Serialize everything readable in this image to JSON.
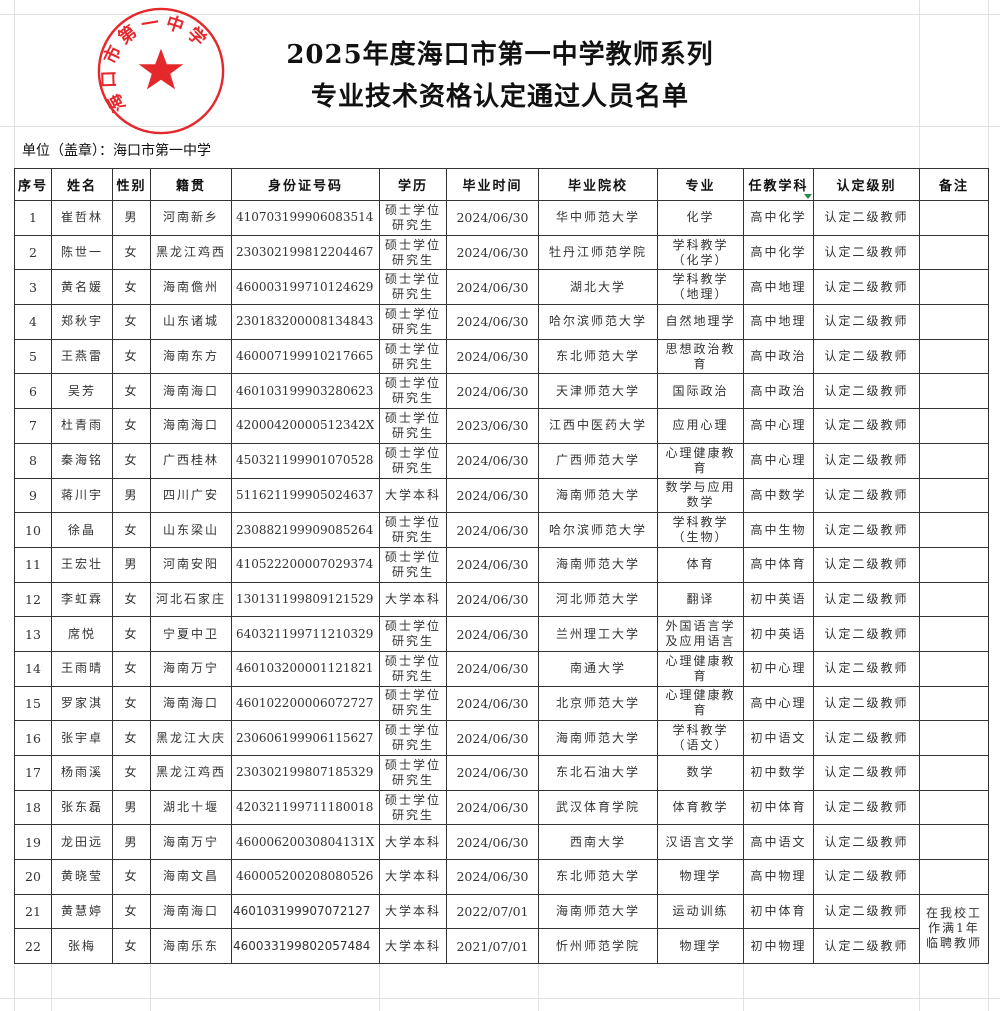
{
  "title_line1": "2025年度海口市第一中学教师系列",
  "title_line2": "专业技术资格认定通过人员名单",
  "unit_label": "单位（盖章）：海口市第一中学",
  "stamp": {
    "text": "海口市第一中学",
    "color": "#e3161b",
    "icon": "star-icon"
  },
  "columns": [
    "序号",
    "姓名",
    "性别",
    "籍贯",
    "身份证号码",
    "学历",
    "毕业时间",
    "毕业院校",
    "专业",
    "任教学科",
    "认定级别",
    "备注"
  ],
  "rows": [
    [
      "1",
      "崔哲林",
      "男",
      "河南新乡",
      "410703199906083514",
      "硕士学位\n研究生",
      "2024/06/30",
      "华中师范大学",
      "化学",
      "高中化学",
      "认定二级教师",
      ""
    ],
    [
      "2",
      "陈世一",
      "女",
      "黑龙江鸡西",
      "230302199812204467",
      "硕士学位\n研究生",
      "2024/06/30",
      "牡丹江师范学院",
      "学科教学\n（化学）",
      "高中化学",
      "认定二级教师",
      ""
    ],
    [
      "3",
      "黄名媛",
      "女",
      "海南儋州",
      "460003199710124629",
      "硕士学位\n研究生",
      "2024/06/30",
      "湖北大学",
      "学科教学\n（地理）",
      "高中地理",
      "认定二级教师",
      ""
    ],
    [
      "4",
      "郑秋宇",
      "女",
      "山东诸城",
      "230183200008134843",
      "硕士学位\n研究生",
      "2024/06/30",
      "哈尔滨师范大学",
      "自然地理学",
      "高中地理",
      "认定二级教师",
      ""
    ],
    [
      "5",
      "王燕雷",
      "女",
      "海南东方",
      "460007199910217665",
      "硕士学位\n研究生",
      "2024/06/30",
      "东北师范大学",
      "思想政治教\n育",
      "高中政治",
      "认定二级教师",
      ""
    ],
    [
      "6",
      "吴芳",
      "女",
      "海南海口",
      "460103199903280623",
      "硕士学位\n研究生",
      "2024/06/30",
      "天津师范大学",
      "国际政治",
      "高中政治",
      "认定二级教师",
      ""
    ],
    [
      "7",
      "杜青雨",
      "女",
      "海南海口",
      "42000420000512342X",
      "硕士学位\n研究生",
      "2023/06/30",
      "江西中医药大学",
      "应用心理",
      "高中心理",
      "认定二级教师",
      ""
    ],
    [
      "8",
      "秦海铭",
      "女",
      "广西桂林",
      "450321199901070528",
      "硕士学位\n研究生",
      "2024/06/30",
      "广西师范大学",
      "心理健康教\n育",
      "高中心理",
      "认定二级教师",
      ""
    ],
    [
      "9",
      "蒋川宇",
      "男",
      "四川广安",
      "511621199905024637",
      "大学本科",
      "2024/06/30",
      "海南师范大学",
      "数学与应用\n数学",
      "高中数学",
      "认定二级教师",
      ""
    ],
    [
      "10",
      "徐晶",
      "女",
      "山东梁山",
      "230882199909085264",
      "硕士学位\n研究生",
      "2024/06/30",
      "哈尔滨师范大学",
      "学科教学\n（生物）",
      "高中生物",
      "认定二级教师",
      ""
    ],
    [
      "11",
      "王宏壮",
      "男",
      "河南安阳",
      "410522200007029374",
      "硕士学位\n研究生",
      "2024/06/30",
      "海南师范大学",
      "体育",
      "高中体育",
      "认定二级教师",
      ""
    ],
    [
      "12",
      "李虹霖",
      "女",
      "河北石家庄",
      "130131199809121529",
      "大学本科",
      "2024/06/30",
      "河北师范大学",
      "翻译",
      "初中英语",
      "认定二级教师",
      ""
    ],
    [
      "13",
      "席悦",
      "女",
      "宁夏中卫",
      "640321199711210329",
      "硕士学位\n研究生",
      "2024/06/30",
      "兰州理工大学",
      "外国语言学\n及应用语言",
      "初中英语",
      "认定二级教师",
      ""
    ],
    [
      "14",
      "王雨晴",
      "女",
      "海南万宁",
      "460103200001121821",
      "硕士学位\n研究生",
      "2024/06/30",
      "南通大学",
      "心理健康教\n育",
      "初中心理",
      "认定二级教师",
      ""
    ],
    [
      "15",
      "罗家淇",
      "女",
      "海南海口",
      "460102200006072727",
      "硕士学位\n研究生",
      "2024/06/30",
      "北京师范大学",
      "心理健康教\n育",
      "高中心理",
      "认定二级教师",
      ""
    ],
    [
      "16",
      "张宇卓",
      "女",
      "黑龙江大庆",
      "230606199906115627",
      "硕士学位\n研究生",
      "2024/06/30",
      "海南师范大学",
      "学科教学\n（语文）",
      "初中语文",
      "认定二级教师",
      ""
    ],
    [
      "17",
      "杨雨溪",
      "女",
      "黑龙江鸡西",
      "230302199807185329",
      "硕士学位\n研究生",
      "2024/06/30",
      "东北石油大学",
      "数学",
      "初中数学",
      "认定二级教师",
      ""
    ],
    [
      "18",
      "张东磊",
      "男",
      "湖北十堰",
      "420321199711180018",
      "硕士学位\n研究生",
      "2024/06/30",
      "武汉体育学院",
      "体育教学",
      "初中体育",
      "认定二级教师",
      ""
    ],
    [
      "19",
      "龙田远",
      "男",
      "海南万宁",
      "46000620030804131X",
      "大学本科",
      "2024/06/30",
      "西南大学",
      "汉语言文学",
      "高中语文",
      "认定二级教师",
      ""
    ],
    [
      "20",
      "黄晓莹",
      "女",
      "海南文昌",
      "460005200208080526",
      "大学本科",
      "2024/06/30",
      "东北师范大学",
      "物理学",
      "高中物理",
      "认定二级教师",
      ""
    ],
    [
      "21",
      "黄慧婷",
      "女",
      "海南海口",
      "460103199907072127",
      "大学本科",
      "2022/07/01",
      "海南师范大学",
      "运动训练",
      "初中体育",
      "认定二级教师",
      "在我校工作满1年临聘教师"
    ],
    [
      "22",
      "张梅",
      "女",
      "海南乐东",
      "460033199802057484",
      "大学本科",
      "2021/07/01",
      "忻州师范学院",
      "物理学",
      "初中物理",
      "认定二级教师",
      null
    ]
  ]
}
